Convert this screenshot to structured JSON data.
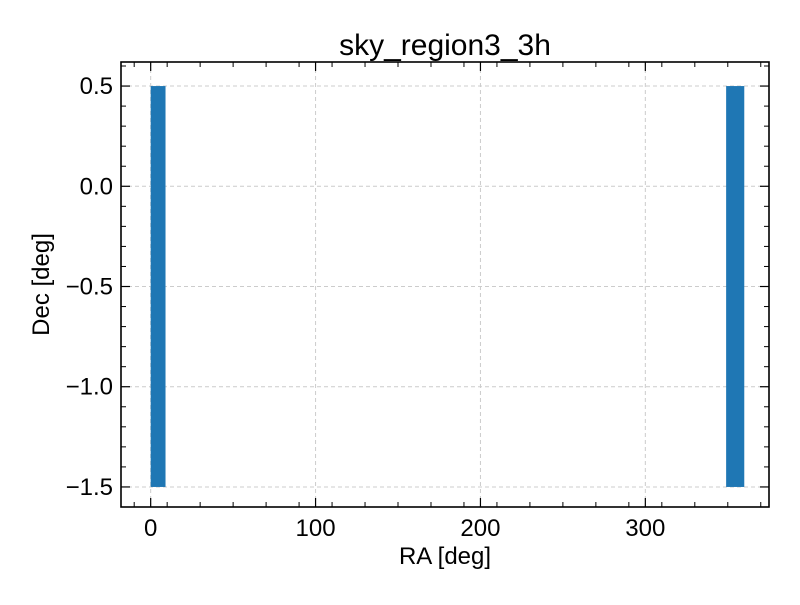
{
  "chart_data": {
    "type": "scatter",
    "title": "sky_region3_3h",
    "xlabel": "RA [deg]",
    "ylabel": "Dec [deg]",
    "xlim": [
      -18,
      375
    ],
    "ylim": [
      -1.6,
      0.62
    ],
    "xticks": [
      0,
      100,
      200,
      300
    ],
    "xtick_labels": [
      "0",
      "100",
      "200",
      "300"
    ],
    "yticks": [
      0.5,
      0.0,
      -0.5,
      -1.0,
      -1.5
    ],
    "ytick_labels": [
      "0.5",
      "0.0",
      "−0.5",
      "−1.0",
      "−1.5"
    ],
    "grid": true,
    "color": "#1f77b4",
    "regions": [
      {
        "ra_min": 0,
        "ra_max": 9,
        "dec_min": -1.5,
        "dec_max": 0.5
      },
      {
        "ra_min": 349,
        "ra_max": 360,
        "dec_min": -1.5,
        "dec_max": 0.5
      }
    ]
  }
}
